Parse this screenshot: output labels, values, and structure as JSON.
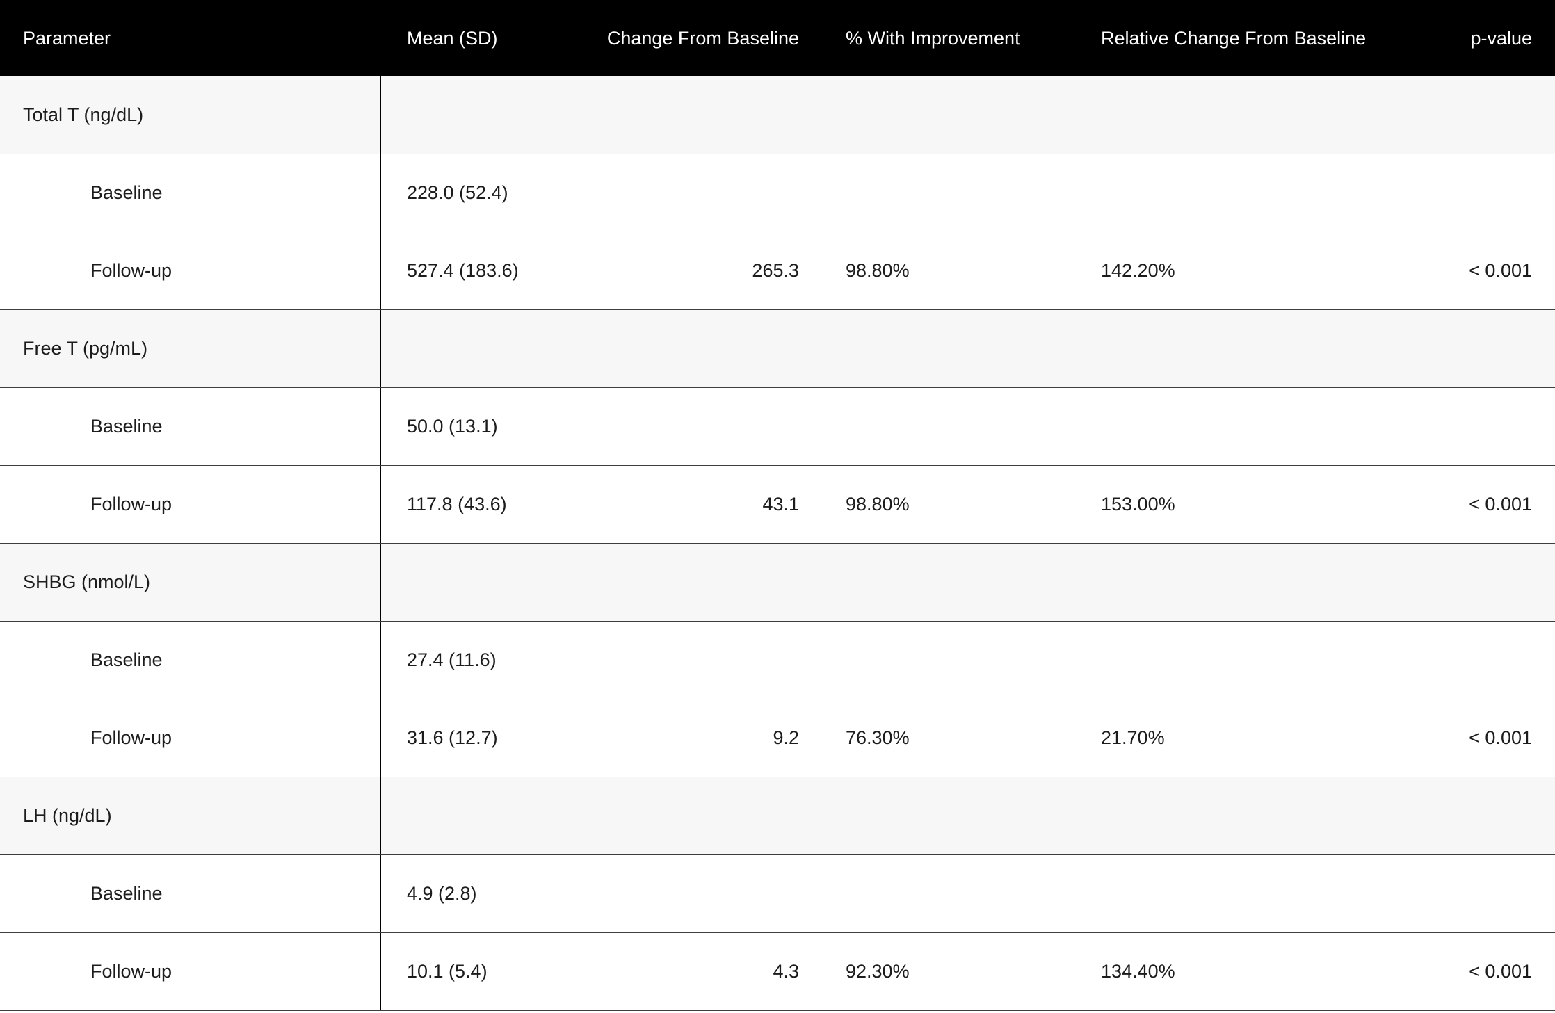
{
  "table": {
    "header": {
      "columns": [
        {
          "label": "Parameter",
          "align": "left"
        },
        {
          "label": "Mean (SD)",
          "align": "left"
        },
        {
          "label": "Change From Baseline",
          "align": "right"
        },
        {
          "label": "% With Improvement",
          "align": "left"
        },
        {
          "label": "Relative Change From Baseline",
          "align": "left"
        },
        {
          "label": "p-value",
          "align": "right"
        }
      ]
    },
    "rows": [
      {
        "kind": "group",
        "cells": [
          "Total T (ng/dL)",
          "",
          "",
          "",
          "",
          ""
        ]
      },
      {
        "kind": "sub",
        "cells": [
          "Baseline",
          "228.0 (52.4)",
          "",
          "",
          "",
          ""
        ]
      },
      {
        "kind": "sub",
        "cells": [
          "Follow-up",
          "527.4 (183.6)",
          "265.3",
          "98.80%",
          "142.20%",
          "< 0.001"
        ]
      },
      {
        "kind": "group",
        "cells": [
          "Free T (pg/mL)",
          "",
          "",
          "",
          "",
          ""
        ]
      },
      {
        "kind": "sub",
        "cells": [
          "Baseline",
          "50.0 (13.1)",
          "",
          "",
          "",
          ""
        ]
      },
      {
        "kind": "sub",
        "cells": [
          "Follow-up",
          "117.8 (43.6)",
          "43.1",
          "98.80%",
          "153.00%",
          "< 0.001"
        ]
      },
      {
        "kind": "group",
        "cells": [
          "SHBG (nmol/L)",
          "",
          "",
          "",
          "",
          ""
        ]
      },
      {
        "kind": "sub",
        "cells": [
          "Baseline",
          "27.4 (11.6)",
          "",
          "",
          "",
          ""
        ]
      },
      {
        "kind": "sub",
        "cells": [
          "Follow-up",
          "31.6 (12.7)",
          "9.2",
          "76.30%",
          "21.70%",
          "< 0.001"
        ]
      },
      {
        "kind": "group",
        "cells": [
          "LH (ng/dL)",
          "",
          "",
          "",
          "",
          ""
        ]
      },
      {
        "kind": "sub",
        "cells": [
          "Baseline",
          "4.9 (2.8)",
          "",
          "",
          "",
          ""
        ]
      },
      {
        "kind": "sub",
        "cells": [
          "Follow-up",
          "10.1 (5.4)",
          "4.3",
          "92.30%",
          "134.40%",
          "< 0.001"
        ]
      }
    ]
  },
  "colors": {
    "header_bg": "#000000",
    "header_text": "#ffffff",
    "body_text": "#1c1c1c",
    "group_row_bg": "#f7f7f7",
    "row_border": "#3e3e3e",
    "column_divider": "#000000"
  },
  "chart_data": {
    "type": "table",
    "title": "",
    "columns": [
      "Parameter",
      "Mean (SD)",
      "Change From Baseline",
      "% With Improvement",
      "Relative Change From Baseline",
      "p-value"
    ],
    "rows": [
      [
        "Total T (ng/dL)",
        "",
        "",
        "",
        "",
        ""
      ],
      [
        "Baseline",
        "228.0 (52.4)",
        "",
        "",
        "",
        ""
      ],
      [
        "Follow-up",
        "527.4 (183.6)",
        "265.3",
        "98.80%",
        "142.20%",
        "< 0.001"
      ],
      [
        "Free T (pg/mL)",
        "",
        "",
        "",
        "",
        ""
      ],
      [
        "Baseline",
        "50.0 (13.1)",
        "",
        "",
        "",
        ""
      ],
      [
        "Follow-up",
        "117.8 (43.6)",
        "43.1",
        "98.80%",
        "153.00%",
        "< 0.001"
      ],
      [
        "SHBG (nmol/L)",
        "",
        "",
        "",
        "",
        ""
      ],
      [
        "Baseline",
        "27.4 (11.6)",
        "",
        "",
        "",
        ""
      ],
      [
        "Follow-up",
        "31.6 (12.7)",
        "9.2",
        "76.30%",
        "21.70%",
        "< 0.001"
      ],
      [
        "LH (ng/dL)",
        "",
        "",
        "",
        "",
        ""
      ],
      [
        "Baseline",
        "4.9 (2.8)",
        "",
        "",
        "",
        ""
      ],
      [
        "Follow-up",
        "10.1 (5.4)",
        "4.3",
        "92.30%",
        "134.40%",
        "< 0.001"
      ]
    ]
  }
}
